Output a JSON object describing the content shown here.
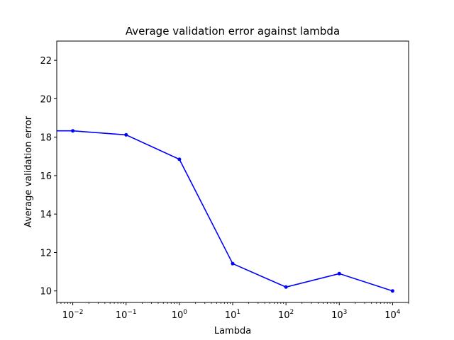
{
  "chart_data": {
    "type": "line",
    "title": "Average validation error against lambda",
    "xlabel": "Lambda",
    "ylabel": "Average validation error",
    "x_scale": "log",
    "xlim": [
      0.005,
      20000
    ],
    "ylim": [
      9.4,
      23
    ],
    "x_ticks": [
      {
        "value": 0.01,
        "base": "10",
        "exp": "−2"
      },
      {
        "value": 0.1,
        "base": "10",
        "exp": "−1"
      },
      {
        "value": 1,
        "base": "10",
        "exp": "0"
      },
      {
        "value": 10,
        "base": "10",
        "exp": "1"
      },
      {
        "value": 100,
        "base": "10",
        "exp": "2"
      },
      {
        "value": 1000,
        "base": "10",
        "exp": "3"
      },
      {
        "value": 10000,
        "base": "10",
        "exp": "4"
      }
    ],
    "y_ticks": [
      10,
      12,
      14,
      16,
      18,
      20,
      22
    ],
    "grid": false,
    "series": [
      {
        "color": "#0000ff",
        "x": [
          0.001,
          0.01,
          0.1,
          1,
          10,
          100,
          1000,
          10000
        ],
        "y": [
          18.33,
          18.33,
          18.12,
          16.85,
          11.42,
          10.2,
          10.9,
          10.0
        ]
      }
    ]
  }
}
